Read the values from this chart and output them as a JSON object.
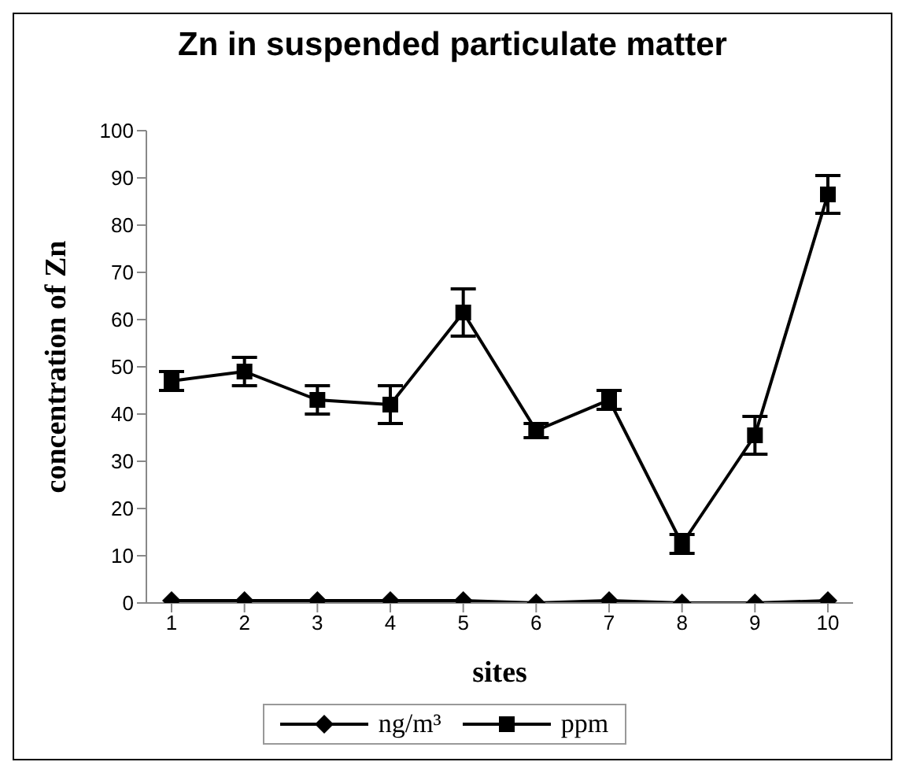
{
  "chart_data": {
    "type": "line",
    "title": "Zn in suspended particulate matter",
    "xlabel": "sites",
    "ylabel": "concentration of Zn",
    "categories": [
      "1",
      "2",
      "3",
      "4",
      "5",
      "6",
      "7",
      "8",
      "9",
      "10"
    ],
    "series": [
      {
        "name": "ng/m³",
        "color": "#000000",
        "marker": "diamond",
        "values": [
          0.5,
          0.5,
          0.5,
          0.5,
          0.5,
          0,
          0.5,
          0,
          0,
          0.5
        ]
      },
      {
        "name": "ppm",
        "color": "#000000",
        "marker": "square",
        "values": [
          47,
          49,
          43,
          42,
          61.5,
          36.5,
          43,
          12.5,
          35.5,
          86.5
        ],
        "errors": [
          2,
          3,
          3,
          4,
          5,
          1.5,
          2,
          2,
          4,
          4
        ]
      }
    ],
    "ylim": [
      0,
      100
    ],
    "yticks": [
      0,
      10,
      20,
      30,
      40,
      50,
      60,
      70,
      80,
      90,
      100
    ],
    "legend": "bottom",
    "line_style": "solid"
  }
}
